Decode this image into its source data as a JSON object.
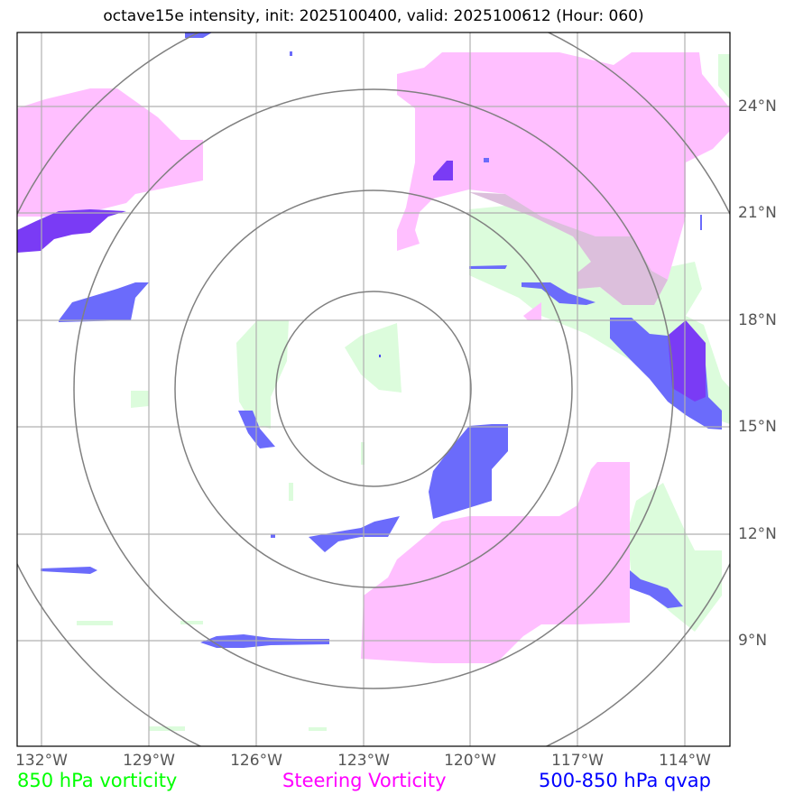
{
  "title": "octave15e intensity, init: 2025100400, valid: 2025100612 (Hour: 060)",
  "lon_labels": [
    "132°W",
    "129°W",
    "126°W",
    "123°W",
    "120°W",
    "117°W",
    "114°W"
  ],
  "lat_labels": [
    "24°N",
    "21°N",
    "18°N",
    "15°N",
    "12°N",
    "9°N"
  ],
  "legend": {
    "vorticity_850": {
      "label": "850 hPa vorticity",
      "color": "#00ff00"
    },
    "steering": {
      "label": "Steering Vorticity",
      "color": "#ff00ff"
    },
    "qvap": {
      "label": "500-850 hPa qvap",
      "color": "#0000ff"
    }
  },
  "colors": {
    "green_fill": "#dcfcdc",
    "pink_fill": "#ffbfff",
    "blue_fill": "#6b6bfb",
    "purple_fill": "#7a3bf5",
    "overlap_fill": "#dcbfdc",
    "ring": "#808080",
    "grid": "#b0b0b0"
  },
  "chart_data": {
    "type": "map",
    "projection": "lat-lon",
    "extent": {
      "lon_min": -132.7,
      "lon_max": -112.8,
      "lat_min": 5.9,
      "lat_max": 26.0
    },
    "storm_center": {
      "lon": -123.2,
      "lat": 16.1
    },
    "range_rings_deg": [
      2.7,
      5.5,
      8.3,
      11.0
    ]
  }
}
